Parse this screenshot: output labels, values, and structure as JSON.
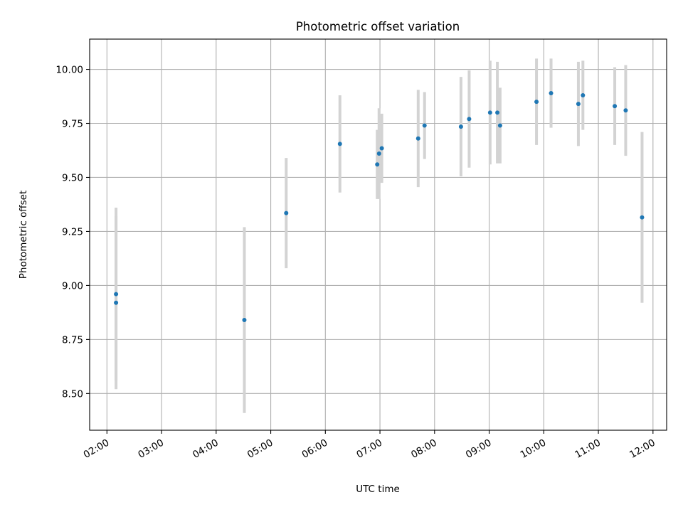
{
  "chart_data": {
    "type": "scatter",
    "title": "Photometric offset variation",
    "xlabel": "UTC time",
    "ylabel": "Photometric offset",
    "x_tick_labels": [
      "02:00",
      "03:00",
      "04:00",
      "05:00",
      "06:00",
      "07:00",
      "08:00",
      "09:00",
      "10:00",
      "11:00",
      "12:00"
    ],
    "y_tick_labels": [
      "8.50",
      "8.75",
      "9.00",
      "9.25",
      "9.50",
      "9.75",
      "10.00"
    ],
    "xlim": [
      "01:41",
      "12:15"
    ],
    "ylim": [
      8.33,
      10.14
    ],
    "grid": true,
    "x_axis_format": "HH:MM",
    "series": [
      {
        "marker_color": "#1f77b4",
        "errorbar_color": "#d3d3d3",
        "points": [
          {
            "x": "02:10",
            "y": 8.96,
            "yerr": 0.4
          },
          {
            "x": "02:10",
            "y": 8.92,
            "yerr": 0.4
          },
          {
            "x": "04:31",
            "y": 8.84,
            "yerr": 0.43
          },
          {
            "x": "05:17",
            "y": 9.335,
            "yerr": 0.255
          },
          {
            "x": "06:16",
            "y": 9.655,
            "yerr": 0.225
          },
          {
            "x": "06:57",
            "y": 9.56,
            "yerr": 0.16
          },
          {
            "x": "06:59",
            "y": 9.61,
            "yerr": 0.21
          },
          {
            "x": "07:02",
            "y": 9.635,
            "yerr": 0.16
          },
          {
            "x": "07:42",
            "y": 9.68,
            "yerr": 0.225
          },
          {
            "x": "07:49",
            "y": 9.74,
            "yerr": 0.155
          },
          {
            "x": "08:29",
            "y": 9.735,
            "yerr": 0.23
          },
          {
            "x": "08:38",
            "y": 9.77,
            "yerr": 0.225
          },
          {
            "x": "09:01",
            "y": 9.8,
            "yerr": 0.24
          },
          {
            "x": "09:09",
            "y": 9.8,
            "yerr": 0.235
          },
          {
            "x": "09:12",
            "y": 9.74,
            "yerr": 0.175
          },
          {
            "x": "09:52",
            "y": 9.85,
            "yerr": 0.2
          },
          {
            "x": "10:08",
            "y": 9.89,
            "yerr": 0.16
          },
          {
            "x": "10:38",
            "y": 9.84,
            "yerr": 0.195
          },
          {
            "x": "10:43",
            "y": 9.88,
            "yerr": 0.16
          },
          {
            "x": "11:18",
            "y": 9.83,
            "yerr": 0.18
          },
          {
            "x": "11:30",
            "y": 9.81,
            "yerr": 0.21
          },
          {
            "x": "11:48",
            "y": 9.315,
            "yerr": 0.395
          }
        ]
      }
    ]
  }
}
